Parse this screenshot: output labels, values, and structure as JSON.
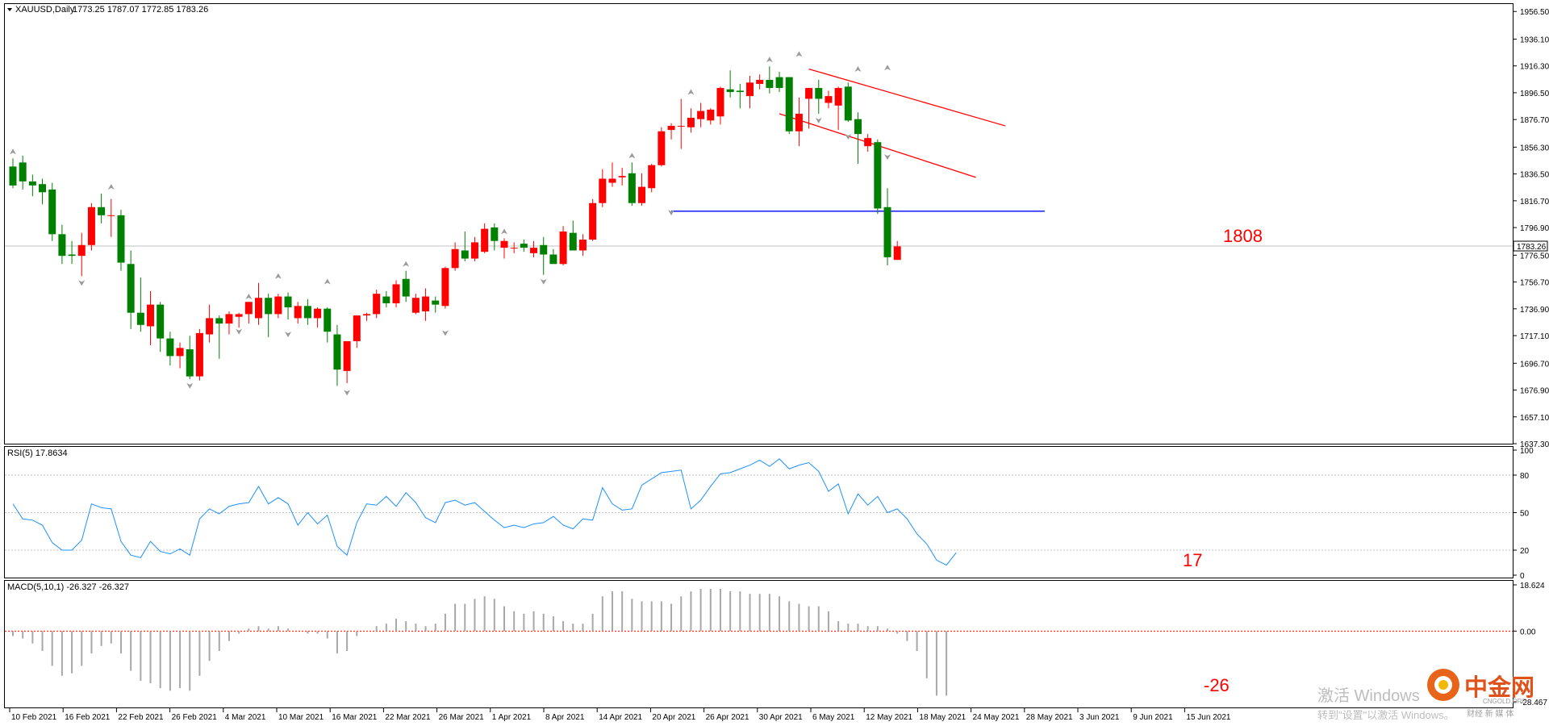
{
  "chart_data": {
    "type": "candlestick",
    "symbol_header": "XAUUSD,Daily",
    "ohlc_header": "1773.25 1787.07 1772.85 1783.26",
    "current_price_label": "1783.26",
    "main_price_axis": {
      "ticks": [
        1637.3,
        1657.1,
        1676.9,
        1696.7,
        1717.1,
        1736.9,
        1756.7,
        1776.5,
        1796.9,
        1816.7,
        1836.5,
        1856.3,
        1876.7,
        1896.5,
        1916.3,
        1936.1,
        1956.5
      ],
      "tick_labels": [
        "1637.30",
        "1657.10",
        "1676.90",
        "1696.70",
        "1717.10",
        "1736.90",
        "1756.70",
        "1776.50",
        "1796.90",
        "1816.70",
        "1836.50",
        "1856.30",
        "1876.70",
        "1896.50",
        "1916.30",
        "1936.10",
        "1956.50"
      ],
      "range": [
        1637.3,
        1962.0
      ]
    },
    "dates": [
      "10 Feb 2021",
      "16 Feb 2021",
      "22 Feb 2021",
      "26 Feb 2021",
      "4 Mar 2021",
      "10 Mar 2021",
      "16 Mar 2021",
      "22 Mar 2021",
      "26 Mar 2021",
      "1 Apr 2021",
      "8 Apr 2021",
      "14 Apr 2021",
      "20 Apr 2021",
      "26 Apr 2021",
      "30 Apr 2021",
      "6 May 2021",
      "12 May 2021",
      "18 May 2021",
      "24 May 2021",
      "28 May 2021",
      "3 Jun 2021",
      "9 Jun 2021",
      "15 Jun 2021"
    ],
    "candles": [
      {
        "o": 1842,
        "h": 1848,
        "l": 1826,
        "c": 1828
      },
      {
        "o": 1845,
        "h": 1850,
        "l": 1825,
        "c": 1831
      },
      {
        "o": 1831,
        "h": 1836,
        "l": 1820,
        "c": 1828
      },
      {
        "o": 1829,
        "h": 1833,
        "l": 1814,
        "c": 1823
      },
      {
        "o": 1825,
        "h": 1830,
        "l": 1787,
        "c": 1792
      },
      {
        "o": 1792,
        "h": 1799,
        "l": 1770,
        "c": 1776
      },
      {
        "o": 1777,
        "h": 1787,
        "l": 1770,
        "c": 1776
      },
      {
        "o": 1776,
        "h": 1793,
        "l": 1761,
        "c": 1784
      },
      {
        "o": 1784,
        "h": 1815,
        "l": 1780,
        "c": 1812
      },
      {
        "o": 1812,
        "h": 1822,
        "l": 1800,
        "c": 1806
      },
      {
        "o": 1806,
        "h": 1818,
        "l": 1790,
        "c": 1806
      },
      {
        "o": 1806,
        "h": 1810,
        "l": 1765,
        "c": 1771
      },
      {
        "o": 1770,
        "h": 1780,
        "l": 1722,
        "c": 1734
      },
      {
        "o": 1734,
        "h": 1760,
        "l": 1720,
        "c": 1725
      },
      {
        "o": 1724,
        "h": 1750,
        "l": 1710,
        "c": 1740
      },
      {
        "o": 1740,
        "h": 1742,
        "l": 1705,
        "c": 1715
      },
      {
        "o": 1715,
        "h": 1720,
        "l": 1695,
        "c": 1702
      },
      {
        "o": 1702,
        "h": 1712,
        "l": 1693,
        "c": 1708
      },
      {
        "o": 1707,
        "h": 1717,
        "l": 1685,
        "c": 1687
      },
      {
        "o": 1687,
        "h": 1722,
        "l": 1684,
        "c": 1719
      },
      {
        "o": 1718,
        "h": 1740,
        "l": 1712,
        "c": 1730
      },
      {
        "o": 1730,
        "h": 1732,
        "l": 1700,
        "c": 1726
      },
      {
        "o": 1726,
        "h": 1735,
        "l": 1718,
        "c": 1733
      },
      {
        "o": 1731,
        "h": 1734,
        "l": 1723,
        "c": 1733
      },
      {
        "o": 1733,
        "h": 1741,
        "l": 1726,
        "c": 1742
      },
      {
        "o": 1730,
        "h": 1756,
        "l": 1725,
        "c": 1745
      },
      {
        "o": 1745,
        "h": 1748,
        "l": 1716,
        "c": 1733
      },
      {
        "o": 1733,
        "h": 1748,
        "l": 1730,
        "c": 1746
      },
      {
        "o": 1746,
        "h": 1749,
        "l": 1729,
        "c": 1738
      },
      {
        "o": 1730,
        "h": 1742,
        "l": 1726,
        "c": 1739
      },
      {
        "o": 1739,
        "h": 1744,
        "l": 1725,
        "c": 1730
      },
      {
        "o": 1730,
        "h": 1738,
        "l": 1723,
        "c": 1737
      },
      {
        "o": 1737,
        "h": 1738,
        "l": 1712,
        "c": 1720
      },
      {
        "o": 1718,
        "h": 1725,
        "l": 1680,
        "c": 1692
      },
      {
        "o": 1691,
        "h": 1712,
        "l": 1682,
        "c": 1713
      },
      {
        "o": 1713,
        "h": 1732,
        "l": 1708,
        "c": 1732
      },
      {
        "o": 1732,
        "h": 1734,
        "l": 1728,
        "c": 1733
      },
      {
        "o": 1733,
        "h": 1751,
        "l": 1730,
        "c": 1748
      },
      {
        "o": 1746,
        "h": 1750,
        "l": 1738,
        "c": 1741
      },
      {
        "o": 1741,
        "h": 1758,
        "l": 1738,
        "c": 1755
      },
      {
        "o": 1759,
        "h": 1765,
        "l": 1742,
        "c": 1746
      },
      {
        "o": 1734,
        "h": 1748,
        "l": 1733,
        "c": 1745
      },
      {
        "o": 1735,
        "h": 1752,
        "l": 1728,
        "c": 1746
      },
      {
        "o": 1743,
        "h": 1746,
        "l": 1734,
        "c": 1740
      },
      {
        "o": 1739,
        "h": 1768,
        "l": 1737,
        "c": 1767
      },
      {
        "o": 1767,
        "h": 1786,
        "l": 1765,
        "c": 1781
      },
      {
        "o": 1780,
        "h": 1794,
        "l": 1772,
        "c": 1774
      },
      {
        "o": 1774,
        "h": 1790,
        "l": 1772,
        "c": 1786
      },
      {
        "o": 1779,
        "h": 1800,
        "l": 1778,
        "c": 1796
      },
      {
        "o": 1797,
        "h": 1800,
        "l": 1780,
        "c": 1787
      },
      {
        "o": 1782,
        "h": 1789,
        "l": 1774,
        "c": 1787
      },
      {
        "o": 1782,
        "h": 1786,
        "l": 1778,
        "c": 1782
      },
      {
        "o": 1785,
        "h": 1788,
        "l": 1779,
        "c": 1782
      },
      {
        "o": 1778,
        "h": 1787,
        "l": 1775,
        "c": 1782
      },
      {
        "o": 1784,
        "h": 1790,
        "l": 1762,
        "c": 1777
      },
      {
        "o": 1777,
        "h": 1781,
        "l": 1771,
        "c": 1770
      },
      {
        "o": 1770,
        "h": 1798,
        "l": 1769,
        "c": 1794
      },
      {
        "o": 1793,
        "h": 1802,
        "l": 1781,
        "c": 1780
      },
      {
        "o": 1780,
        "h": 1792,
        "l": 1776,
        "c": 1788
      },
      {
        "o": 1788,
        "h": 1818,
        "l": 1787,
        "c": 1815
      },
      {
        "o": 1815,
        "h": 1840,
        "l": 1812,
        "c": 1833
      },
      {
        "o": 1830,
        "h": 1845,
        "l": 1827,
        "c": 1833
      },
      {
        "o": 1834,
        "h": 1841,
        "l": 1828,
        "c": 1835
      },
      {
        "o": 1837,
        "h": 1845,
        "l": 1813,
        "c": 1815
      },
      {
        "o": 1815,
        "h": 1837,
        "l": 1813,
        "c": 1827
      },
      {
        "o": 1826,
        "h": 1844,
        "l": 1823,
        "c": 1843
      },
      {
        "o": 1843,
        "h": 1871,
        "l": 1842,
        "c": 1868
      },
      {
        "o": 1869,
        "h": 1874,
        "l": 1862,
        "c": 1872
      },
      {
        "o": 1872,
        "h": 1892,
        "l": 1855,
        "c": 1872
      },
      {
        "o": 1871,
        "h": 1885,
        "l": 1867,
        "c": 1878
      },
      {
        "o": 1877,
        "h": 1889,
        "l": 1871,
        "c": 1883
      },
      {
        "o": 1876,
        "h": 1885,
        "l": 1873,
        "c": 1884
      },
      {
        "o": 1879,
        "h": 1901,
        "l": 1873,
        "c": 1900
      },
      {
        "o": 1899,
        "h": 1913,
        "l": 1893,
        "c": 1897
      },
      {
        "o": 1898,
        "h": 1903,
        "l": 1885,
        "c": 1897
      },
      {
        "o": 1894,
        "h": 1909,
        "l": 1885,
        "c": 1904
      },
      {
        "o": 1903,
        "h": 1910,
        "l": 1899,
        "c": 1906
      },
      {
        "o": 1906,
        "h": 1916,
        "l": 1896,
        "c": 1900
      },
      {
        "o": 1908,
        "h": 1912,
        "l": 1897,
        "c": 1900
      },
      {
        "o": 1908,
        "h": 1908,
        "l": 1866,
        "c": 1868
      },
      {
        "o": 1868,
        "h": 1893,
        "l": 1857,
        "c": 1881
      },
      {
        "o": 1892,
        "h": 1900,
        "l": 1870,
        "c": 1900
      },
      {
        "o": 1900,
        "h": 1906,
        "l": 1881,
        "c": 1892
      },
      {
        "o": 1889,
        "h": 1898,
        "l": 1885,
        "c": 1894
      },
      {
        "o": 1887,
        "h": 1901,
        "l": 1869,
        "c": 1900
      },
      {
        "o": 1901,
        "h": 1904,
        "l": 1875,
        "c": 1876
      },
      {
        "o": 1877,
        "h": 1882,
        "l": 1844,
        "c": 1866
      },
      {
        "o": 1857,
        "h": 1866,
        "l": 1853,
        "c": 1863
      },
      {
        "o": 1860,
        "h": 1862,
        "l": 1807,
        "c": 1811
      },
      {
        "o": 1812,
        "h": 1826,
        "l": 1769,
        "c": 1775
      },
      {
        "o": 1773,
        "h": 1787,
        "l": 1773,
        "c": 1783
      }
    ],
    "fractal_up": [
      [
        0,
        1848
      ],
      [
        10,
        1822
      ],
      [
        24,
        1741
      ],
      [
        27,
        1756
      ],
      [
        32,
        1752
      ],
      [
        40,
        1765
      ],
      [
        50,
        1789
      ],
      [
        63,
        1845
      ],
      [
        69,
        1892
      ],
      [
        77,
        1916
      ],
      [
        80,
        1920
      ],
      [
        86,
        1909
      ],
      [
        89,
        1910
      ]
    ],
    "fractal_down": [
      [
        7,
        1761
      ],
      [
        18,
        1685
      ],
      [
        23,
        1725
      ],
      [
        28,
        1723
      ],
      [
        34,
        1680
      ],
      [
        44,
        1724
      ],
      [
        54,
        1762
      ],
      [
        67,
        1813
      ],
      [
        82,
        1881
      ],
      [
        85,
        1869
      ],
      [
        89,
        1854
      ]
    ],
    "annotations": {
      "horizontal_line": {
        "price": 1809,
        "from_index": 67,
        "to_index": 105
      },
      "channel_upper": {
        "from": [
          81,
          1914
        ],
        "to": [
          101,
          1872
        ]
      },
      "channel_lower": {
        "from": [
          78,
          1881
        ],
        "to": [
          98,
          1834
        ]
      },
      "price_label": "1808",
      "rsi_label": "17",
      "macd_label": "-26"
    },
    "rsi": {
      "header": "RSI(5) 17.8634",
      "levels": [
        20,
        50,
        80
      ],
      "axis_ticks": [
        0,
        20,
        50,
        80,
        100
      ],
      "axis_labels": [
        "0",
        "20",
        "50",
        "80",
        "100"
      ],
      "values": [
        57,
        44,
        43,
        38,
        23,
        17,
        17,
        26,
        57,
        54,
        53,
        25,
        16,
        15,
        26,
        18,
        16,
        20,
        16,
        44,
        52,
        49,
        54,
        57,
        58,
        70,
        57,
        62,
        58,
        40,
        49,
        40,
        48,
        24,
        17,
        41,
        57,
        56,
        63,
        56,
        65,
        57,
        47,
        43,
        57,
        60,
        55,
        58,
        51,
        43,
        38,
        38,
        37,
        40,
        42,
        46,
        39,
        38,
        44,
        43,
        69,
        57,
        52,
        53,
        70,
        75,
        82,
        83,
        84,
        53,
        60,
        70,
        81,
        83,
        85,
        87,
        92,
        88,
        93,
        85,
        88,
        90,
        83,
        68,
        73,
        52,
        66,
        58,
        72,
        42,
        47,
        40,
        28,
        22,
        10,
        8,
        18
      ],
      "values_note": "",
      "vals": [
        57,
        45,
        44,
        40,
        26,
        20,
        20,
        28,
        57,
        54,
        53,
        27,
        16,
        14,
        27,
        19,
        17,
        21,
        16,
        45,
        53,
        49,
        55,
        57,
        58,
        71,
        57,
        62,
        57,
        40,
        50,
        41,
        48,
        23,
        16,
        42,
        57,
        56,
        63,
        55,
        66,
        58,
        46,
        42,
        58,
        60,
        56,
        58,
        51,
        44,
        38,
        40,
        38,
        41,
        42,
        47,
        40,
        37,
        45,
        44,
        70,
        57,
        52,
        53,
        72,
        77,
        82,
        83,
        84,
        53,
        60,
        71,
        81,
        82,
        85,
        88,
        92,
        87,
        93,
        85,
        88,
        90,
        83,
        67,
        73,
        49,
        65,
        56,
        63,
        50,
        53,
        45,
        33,
        25,
        12,
        8,
        18
      ]
    },
    "macd": {
      "header": "MACD(5,10,1) -26.327 -26.327",
      "axis_labels": [
        "18.624",
        "0.00",
        "-28.467"
      ],
      "axis_top": 18.624,
      "axis_bottom": -28.467,
      "signal_level": 0,
      "values": [
        -2,
        -3,
        -5,
        -8,
        -14,
        -18,
        -17,
        -14,
        -9,
        -6,
        -5,
        -9,
        -16,
        -20,
        -21,
        -23,
        -24,
        -23,
        -24,
        -18,
        -12,
        -8,
        -4,
        -1,
        1,
        2,
        1,
        2,
        1,
        0,
        -1,
        -1,
        -3,
        -9,
        -8,
        -2,
        0,
        2,
        3,
        5,
        4,
        3,
        2,
        3,
        7,
        11,
        11,
        13,
        14,
        13,
        10,
        8,
        7,
        8,
        7,
        6,
        4,
        3,
        3,
        7,
        14,
        16,
        16,
        13,
        12,
        12,
        12,
        11,
        14,
        16,
        17,
        17,
        17,
        16,
        16,
        15,
        15,
        15,
        14,
        12,
        11,
        10,
        10,
        8,
        4,
        3,
        3,
        2,
        2,
        1,
        -1,
        -4,
        -8,
        -19,
        -26,
        -26
      ]
    }
  },
  "watermark": {
    "activate_title": "激活 Windows",
    "activate_sub": "转到\"设置\"以激活 Windows。",
    "brand_name": "中金网",
    "brand_url": "CNGOLD.ORG",
    "brand_tagline": "财经 新 媒 体"
  }
}
